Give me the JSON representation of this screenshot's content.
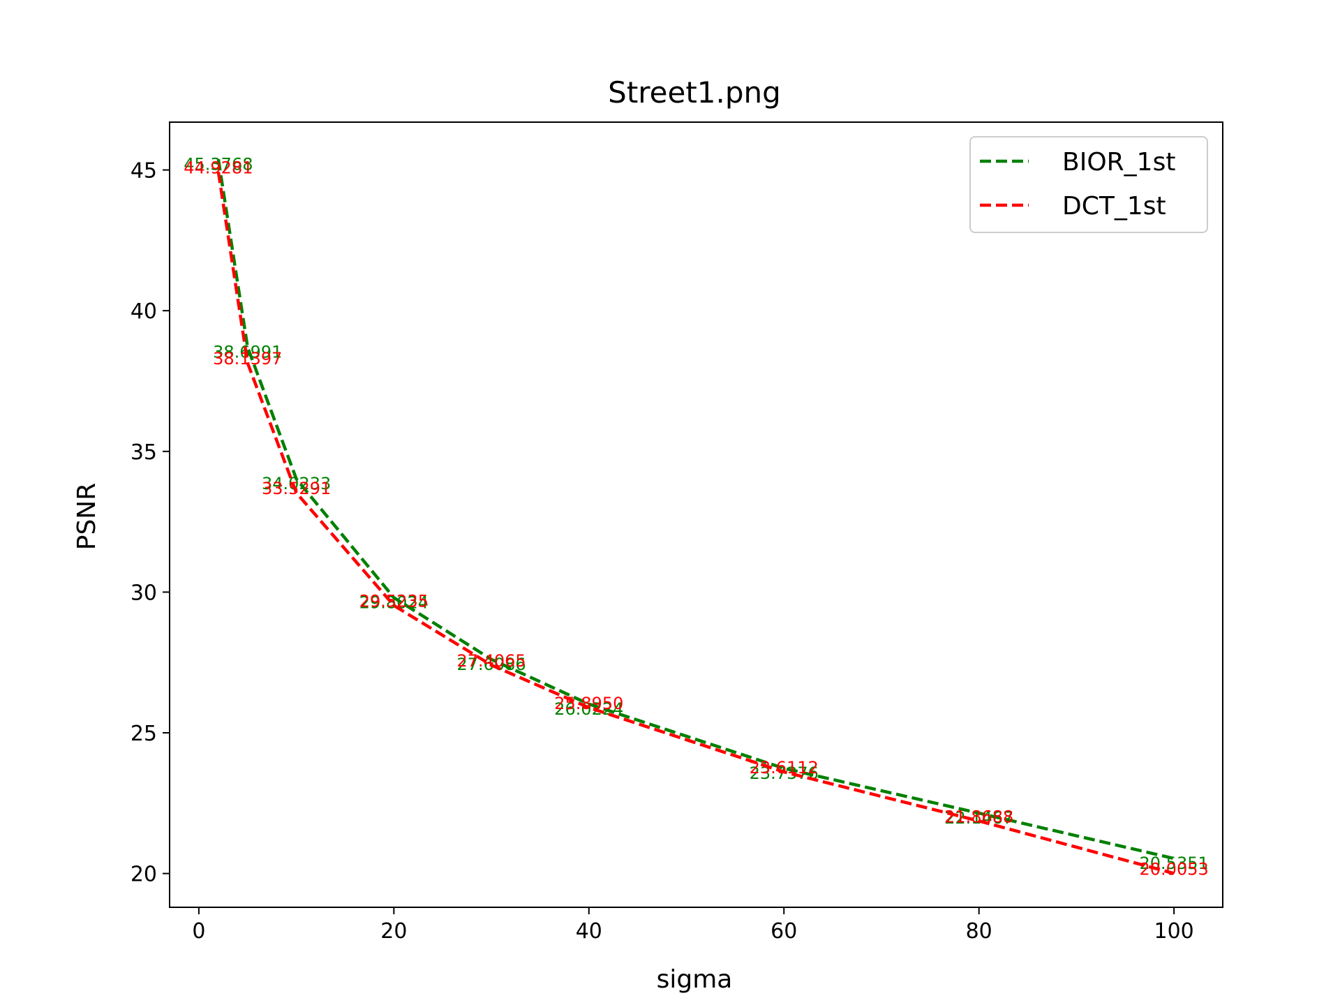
{
  "chart_data": {
    "type": "line",
    "title": "Street1.png",
    "xlabel": "sigma",
    "ylabel": "PSNR",
    "xlim": [
      -3,
      105
    ],
    "ylim": [
      18.8,
      46.7
    ],
    "xticks": [
      0,
      20,
      40,
      60,
      80,
      100
    ],
    "yticks": [
      20,
      25,
      30,
      35,
      40,
      45
    ],
    "grid": false,
    "legend_position": "top-right",
    "x": [
      2,
      5,
      10,
      20,
      30,
      40,
      60,
      80,
      100
    ],
    "series": [
      {
        "name": "BIOR_1st",
        "color": "#008000",
        "line_style": "dashed",
        "values": [
          45.3768,
          38.6991,
          34.0233,
          29.8024,
          27.6086,
          26.0224,
          23.7376,
          22.1467,
          20.5351
        ],
        "labels": [
          "45.3768",
          "38.6991",
          "34.0233",
          "29.8024",
          "27.6086",
          "26.0224",
          "23.7376",
          "22.1467",
          "20.5351"
        ]
      },
      {
        "name": "DCT_1st",
        "color": "#ff0000",
        "line_style": "dashed",
        "values": [
          44.9281,
          38.1397,
          33.5291,
          29.5235,
          27.4065,
          25.895,
          23.6112,
          21.8688,
          20.0053
        ],
        "labels": [
          "44.9281",
          "38.1397",
          "33.5291",
          "29.5235",
          "27.4065",
          "25.8950",
          "23.6112",
          "21.8688",
          "20.0053"
        ]
      }
    ]
  }
}
